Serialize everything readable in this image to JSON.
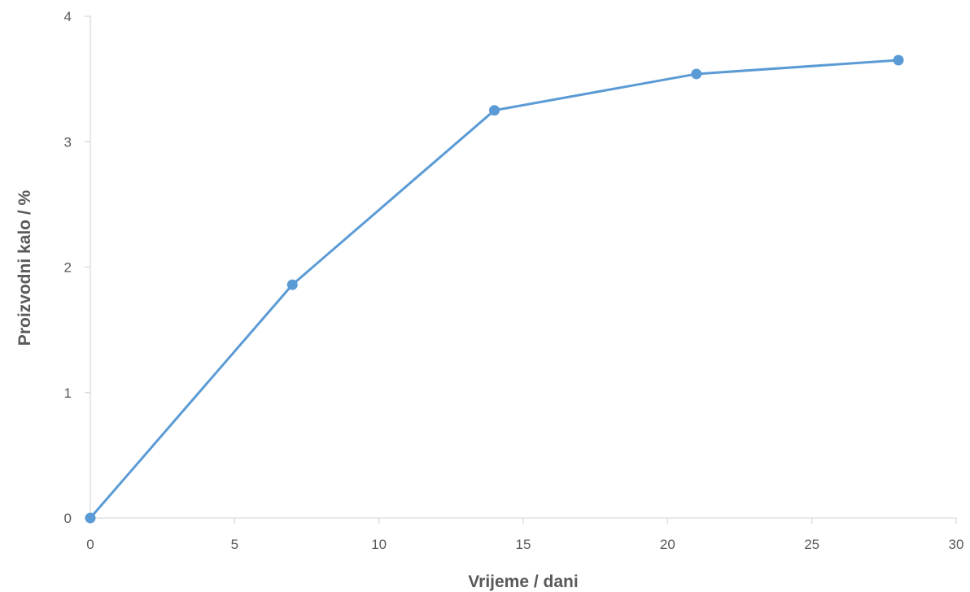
{
  "chart_data": {
    "type": "line",
    "title": "",
    "xlabel": "Vrijeme / dani",
    "ylabel": "Proizvodni kalo / %",
    "xlim": [
      0,
      30
    ],
    "ylim": [
      0,
      4
    ],
    "x_ticks": [
      0,
      5,
      10,
      15,
      20,
      25,
      30
    ],
    "y_ticks": [
      0,
      1,
      2,
      3,
      4
    ],
    "grid": false,
    "legend": "none",
    "series": [
      {
        "x": [
          0,
          7,
          14,
          21,
          28
        ],
        "y": [
          0,
          1.86,
          3.25,
          3.54,
          3.65
        ],
        "color": "#5B9BD5",
        "marker": "circle"
      }
    ],
    "colors": {
      "axis": "#D9D9D9",
      "text": "#595959"
    }
  }
}
